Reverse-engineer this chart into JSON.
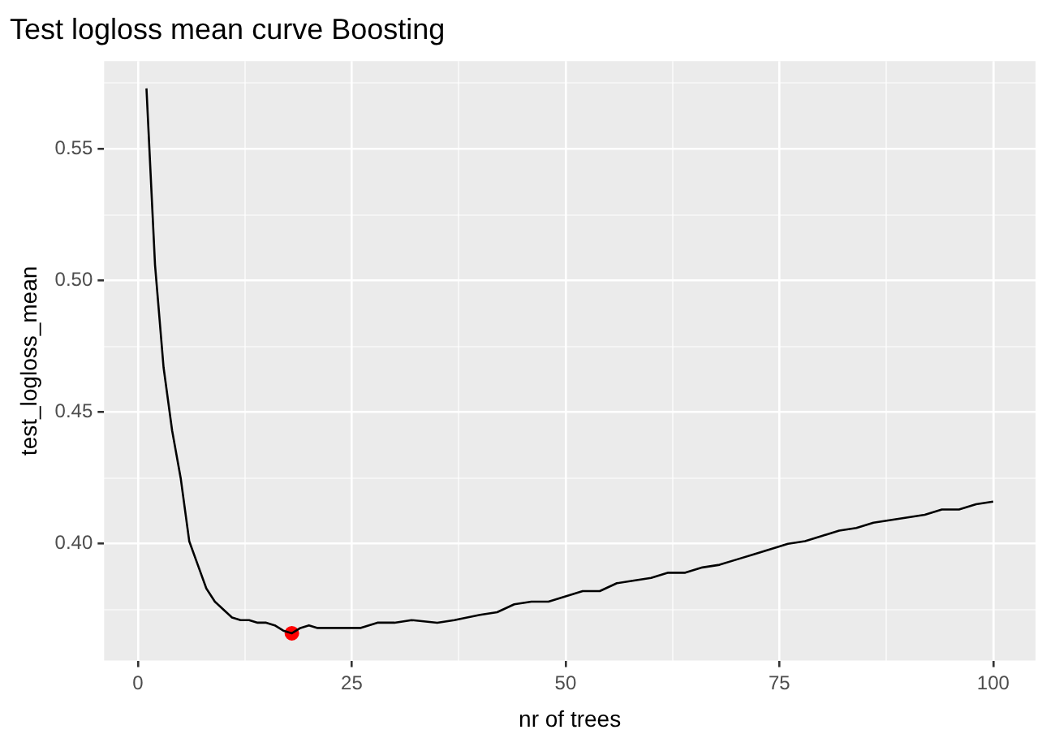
{
  "chart_data": {
    "type": "line",
    "title": "Test logloss mean curve Boosting",
    "xlabel": "nr of trees",
    "ylabel": "test_logloss_mean",
    "xlim": [
      -3.95,
      104.95
    ],
    "ylim": [
      0.3556,
      0.5834
    ],
    "xticks": [
      0,
      {
        "value": 12.5,
        "label": null
      },
      25,
      {
        "value": 37.5,
        "label": null
      },
      50,
      {
        "value": 62.5,
        "label": null
      },
      75,
      {
        "value": 87.5,
        "label": null
      },
      100
    ],
    "yticks": [
      {
        "value": 0.375,
        "label": null
      },
      {
        "value": 0.4,
        "label": "0.40"
      },
      {
        "value": 0.425,
        "label": null
      },
      {
        "value": 0.45,
        "label": "0.45"
      },
      {
        "value": 0.475,
        "label": null
      },
      {
        "value": 0.5,
        "label": "0.50"
      },
      {
        "value": 0.525,
        "label": null
      },
      {
        "value": 0.55,
        "label": "0.55"
      },
      {
        "value": 0.575,
        "label": null
      }
    ],
    "grid": true,
    "marker": "none",
    "line_style": "solid",
    "series": [
      {
        "type": "line",
        "color": "#000000",
        "x": [
          1,
          2,
          3,
          4,
          5,
          6,
          7,
          8,
          9,
          10,
          11,
          12,
          13,
          14,
          15,
          16,
          17,
          18,
          19,
          20,
          21,
          22,
          23,
          24,
          25,
          26,
          27,
          28,
          29,
          30,
          32,
          35,
          37,
          40,
          42,
          44,
          46,
          48,
          50,
          52,
          54,
          56,
          58,
          60,
          62,
          64,
          66,
          68,
          70,
          72,
          74,
          76,
          78,
          80,
          82,
          84,
          86,
          88,
          90,
          92,
          94,
          96,
          98,
          100
        ],
        "values": [
          0.573,
          0.506,
          0.467,
          0.443,
          0.425,
          0.401,
          0.392,
          0.383,
          0.378,
          0.375,
          0.372,
          0.371,
          0.371,
          0.37,
          0.37,
          0.369,
          0.367,
          0.366,
          0.368,
          0.369,
          0.368,
          0.368,
          0.368,
          0.368,
          0.368,
          0.368,
          0.369,
          0.37,
          0.37,
          0.37,
          0.371,
          0.37,
          0.371,
          0.373,
          0.374,
          0.377,
          0.378,
          0.378,
          0.38,
          0.382,
          0.382,
          0.385,
          0.386,
          0.387,
          0.389,
          0.389,
          0.391,
          0.392,
          0.394,
          0.396,
          0.398,
          0.4,
          0.401,
          0.403,
          0.405,
          0.406,
          0.408,
          0.409,
          0.41,
          0.411,
          0.413,
          0.413,
          0.415,
          0.416
        ]
      },
      {
        "type": "scatter",
        "color": "#ff0000",
        "marker": "circle",
        "x": [
          18
        ],
        "values": [
          0.366
        ]
      }
    ]
  }
}
